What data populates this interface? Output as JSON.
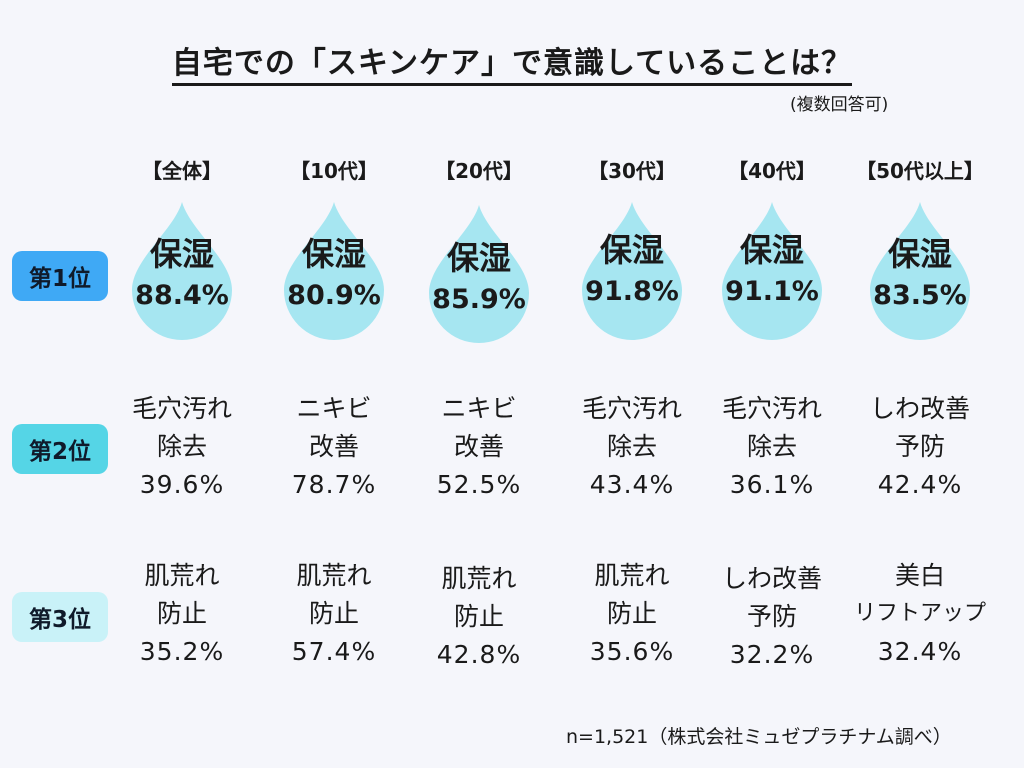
{
  "title": "自宅での「スキンケア」で意識していることは？",
  "subnote": "(複数回答可)",
  "footer": "n=1,521（株式会社ミュゼプラチナム調べ）",
  "colors": {
    "rank1": "#3fa9f5",
    "rank2": "#55d5e6",
    "rank3": "#c9f2f8",
    "drop": "#a6e6f1"
  },
  "ranks": [
    "第1位",
    "第2位",
    "第3位"
  ],
  "chart_data": {
    "type": "table",
    "categories": [
      "【全体】",
      "【10代】",
      "【20代】",
      "【30代】",
      "【40代】",
      "【50代以上】"
    ],
    "rank1": [
      {
        "line1": "保湿",
        "value": 88.4,
        "pct": "88.4%"
      },
      {
        "line1": "保湿",
        "value": 80.9,
        "pct": "80.9%"
      },
      {
        "line1": "保湿",
        "value": 85.9,
        "pct": "85.9%"
      },
      {
        "line1": "保湿",
        "value": 91.8,
        "pct": "91.8%"
      },
      {
        "line1": "保湿",
        "value": 91.1,
        "pct": "91.1%"
      },
      {
        "line1": "保湿",
        "value": 83.5,
        "pct": "83.5%"
      }
    ],
    "rank2": [
      {
        "line1": "毛穴汚れ",
        "line2": "除去",
        "value": 39.6,
        "pct": "39.6%"
      },
      {
        "line1": "ニキビ",
        "line2": "改善",
        "value": 78.7,
        "pct": "78.7%"
      },
      {
        "line1": "ニキビ",
        "line2": "改善",
        "value": 52.5,
        "pct": "52.5%"
      },
      {
        "line1": "毛穴汚れ",
        "line2": "除去",
        "value": 43.4,
        "pct": "43.4%"
      },
      {
        "line1": "毛穴汚れ",
        "line2": "除去",
        "value": 36.1,
        "pct": "36.1%"
      },
      {
        "line1": "しわ改善",
        "line2": "予防",
        "value": 42.4,
        "pct": "42.4%"
      }
    ],
    "rank3": [
      {
        "line1": "肌荒れ",
        "line2": "防止",
        "value": 35.2,
        "pct": "35.2%"
      },
      {
        "line1": "肌荒れ",
        "line2": "防止",
        "value": 57.4,
        "pct": "57.4%"
      },
      {
        "line1": "肌荒れ",
        "line2": "防止",
        "value": 42.8,
        "pct": "42.8%"
      },
      {
        "line1": "肌荒れ",
        "line2": "防止",
        "value": 35.6,
        "pct": "35.6%"
      },
      {
        "line1": "しわ改善",
        "line2": "予防",
        "value": 32.2,
        "pct": "32.2%"
      },
      {
        "line1": "美白",
        "line2": "リフトアップ",
        "value": 32.4,
        "pct": "32.4%"
      }
    ]
  }
}
